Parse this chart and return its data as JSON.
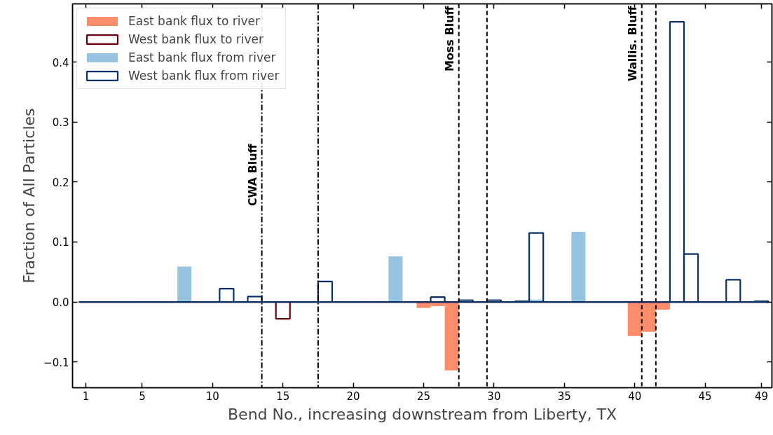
{
  "chart_data": {
    "type": "bar",
    "xlabel": "Bend No., increasing downstream from Liberty, TX",
    "ylabel": "Fraction of All Particles",
    "x": [
      1,
      2,
      3,
      4,
      5,
      6,
      7,
      8,
      9,
      10,
      11,
      12,
      13,
      14,
      15,
      16,
      17,
      18,
      19,
      20,
      21,
      22,
      23,
      24,
      25,
      26,
      27,
      28,
      29,
      30,
      31,
      32,
      33,
      34,
      35,
      36,
      37,
      38,
      39,
      40,
      41,
      42,
      43,
      44,
      45,
      46,
      47,
      48,
      49
    ],
    "series": [
      {
        "name": "East bank flux to river",
        "color": "#fc8d6a",
        "values": [
          0,
          0,
          0,
          0,
          0,
          0,
          0,
          0,
          0,
          0,
          0,
          0,
          0,
          0,
          0,
          0,
          0,
          0,
          0,
          0,
          0,
          0,
          0,
          0,
          -0.01,
          -0.007,
          -0.114,
          0,
          0,
          0,
          0,
          0,
          0,
          0,
          0,
          0,
          0,
          0,
          null,
          -0.057,
          -0.05,
          -0.013,
          0,
          0,
          0,
          0,
          0,
          0,
          0
        ]
      },
      {
        "name": "West bank flux to river",
        "color": "#67000d",
        "values": [
          0,
          0,
          0,
          0,
          0,
          0,
          0,
          0,
          0,
          0,
          0,
          0,
          0,
          0,
          -0.028,
          0,
          0,
          0,
          0,
          0,
          0,
          0,
          0,
          0,
          0,
          0,
          0,
          0,
          0,
          0,
          0,
          0,
          0,
          0,
          0,
          0,
          0,
          0,
          0,
          0,
          0,
          0,
          0,
          0,
          0,
          0,
          0,
          0,
          0
        ]
      },
      {
        "name": "East bank flux from river",
        "color": "#97c4e0",
        "values": [
          0,
          0,
          0,
          0,
          0,
          0,
          0,
          0.059,
          0,
          0,
          0,
          0,
          0,
          0,
          0,
          0,
          0,
          0,
          0,
          0,
          0,
          0,
          0.076,
          0,
          0,
          0,
          0,
          0,
          0,
          0,
          0,
          0,
          0.004,
          0,
          0,
          0.117,
          0,
          0,
          0,
          0,
          0,
          0,
          0,
          0,
          0,
          0,
          0,
          0,
          0
        ]
      },
      {
        "name": "West bank flux from river",
        "color": "#08306b",
        "values": [
          0,
          0,
          0,
          0,
          0,
          0,
          0,
          0,
          0,
          0,
          0.022,
          0,
          0.009,
          0,
          0,
          0,
          0,
          0.034,
          0,
          0,
          0,
          0,
          0,
          0,
          0,
          0.008,
          0,
          0.003,
          0,
          0.003,
          0,
          0.001,
          0.115,
          0,
          0,
          0,
          0,
          0,
          0,
          0,
          0,
          0,
          0.467,
          0.08,
          0,
          0,
          0.037,
          0,
          0.001
        ]
      }
    ],
    "xlim": [
      0.05,
      49.75
    ],
    "xticks": [
      1,
      5,
      10,
      15,
      20,
      25,
      30,
      35,
      40,
      45,
      49
    ],
    "ylim": [
      -0.143,
      0.497
    ],
    "yticks": [
      {
        "value": -0.1,
        "label": "−0.1"
      },
      {
        "value": 0,
        "label": "0.0"
      },
      {
        "value": 0.1,
        "label": "0.1"
      },
      {
        "value": 0.2,
        "label": "0.2"
      },
      {
        "value": 0.3,
        "label": "0.3"
      },
      {
        "value": 0.4,
        "label": "0.4"
      }
    ],
    "ref_lines": [
      {
        "axis": "x",
        "value": 13.5,
        "label": "CWA Bluff",
        "line_style": "dashdot",
        "color": "#000000"
      },
      {
        "axis": "x",
        "value": 17.5,
        "line_style": "dashdot",
        "color": "#000000"
      },
      {
        "axis": "x",
        "value": 27.5,
        "label": "Moss Bluff",
        "line_style": "dashed",
        "color": "#000000"
      },
      {
        "axis": "x",
        "value": 29.5,
        "line_style": "dashed",
        "color": "#000000"
      },
      {
        "axis": "x",
        "value": 40.5,
        "label": "Wallis. Bluff",
        "line_style": "dashed",
        "color": "#000000"
      },
      {
        "axis": "x",
        "value": 41.5,
        "line_style": "dashed",
        "color": "#000000"
      }
    ],
    "legend": "top left",
    "grid": false
  }
}
